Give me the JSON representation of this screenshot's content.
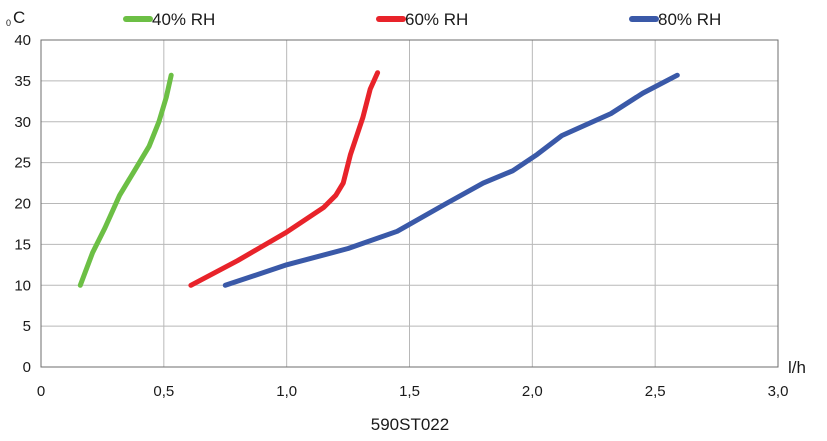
{
  "chart_data": {
    "type": "line",
    "title": "",
    "caption": "590ST022",
    "xlabel": "l/h",
    "ylabel": "°C",
    "ylabel_prefix": "0",
    "ylabel_unit": "C",
    "xlim": [
      0,
      3.0
    ],
    "ylim": [
      0,
      40
    ],
    "x_ticks": [
      0,
      0.5,
      1.0,
      1.5,
      2.0,
      2.5,
      3.0
    ],
    "x_tick_labels": [
      "0",
      "0,5",
      "1,0",
      "1,5",
      "2,0",
      "2,5",
      "3,0"
    ],
    "y_ticks": [
      0,
      5,
      10,
      15,
      20,
      25,
      30,
      35,
      40
    ],
    "y_tick_labels": [
      "0",
      "5",
      "10",
      "15",
      "20",
      "25",
      "30",
      "35",
      "40"
    ],
    "grid": true,
    "legend_position": "top",
    "series": [
      {
        "name": "40% RH",
        "color": "#6cbf45",
        "points": [
          [
            0.16,
            10
          ],
          [
            0.21,
            14
          ],
          [
            0.26,
            17
          ],
          [
            0.32,
            21
          ],
          [
            0.38,
            24
          ],
          [
            0.44,
            27
          ],
          [
            0.48,
            30
          ],
          [
            0.51,
            33
          ],
          [
            0.53,
            35.7
          ]
        ]
      },
      {
        "name": "60% RH",
        "color": "#e8232a",
        "points": [
          [
            0.61,
            10
          ],
          [
            0.8,
            13
          ],
          [
            1.0,
            16.5
          ],
          [
            1.15,
            19.5
          ],
          [
            1.2,
            21
          ],
          [
            1.23,
            22.5
          ],
          [
            1.26,
            26
          ],
          [
            1.31,
            30.5
          ],
          [
            1.34,
            34
          ],
          [
            1.37,
            36
          ]
        ]
      },
      {
        "name": "80% RH",
        "color": "#3a59a8",
        "points": [
          [
            0.75,
            10
          ],
          [
            1.0,
            12.5
          ],
          [
            1.25,
            14.5
          ],
          [
            1.45,
            16.6
          ],
          [
            1.65,
            20
          ],
          [
            1.8,
            22.5
          ],
          [
            1.92,
            24
          ],
          [
            2.02,
            26
          ],
          [
            2.12,
            28.3
          ],
          [
            2.32,
            31
          ],
          [
            2.45,
            33.5
          ],
          [
            2.59,
            35.7
          ]
        ]
      }
    ]
  }
}
